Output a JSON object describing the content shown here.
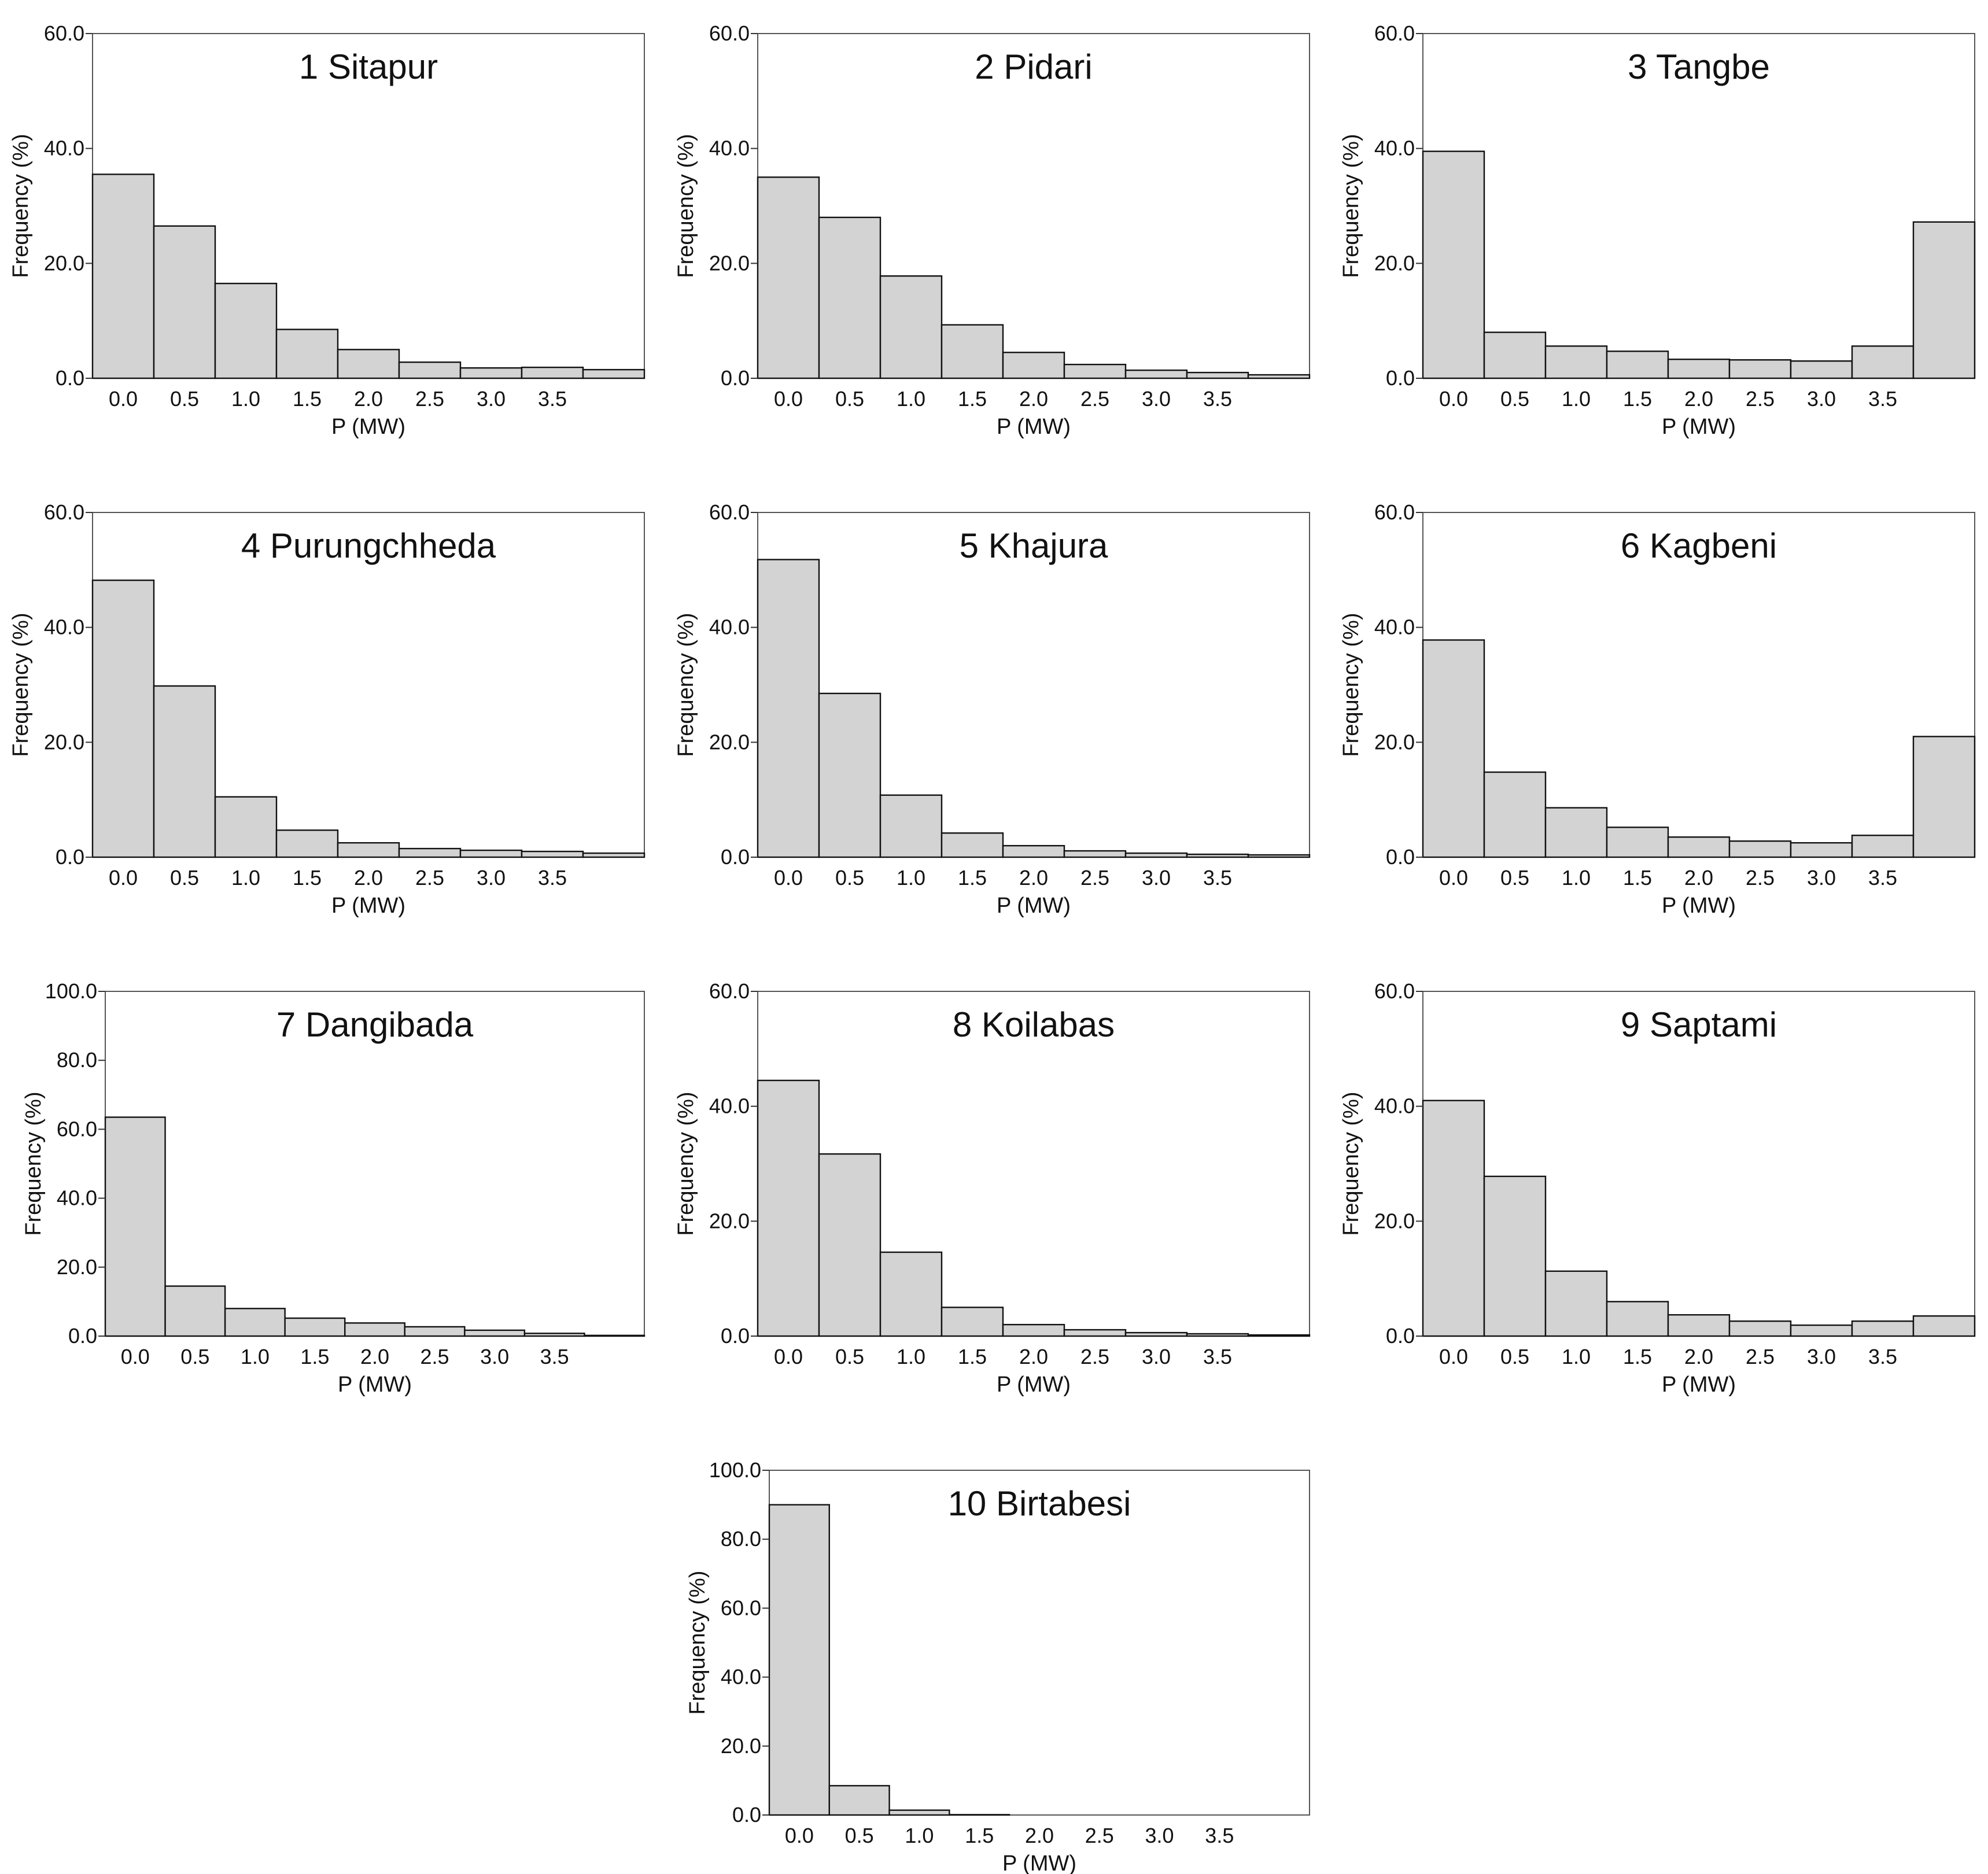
{
  "figure": {
    "bar_color": "#d3d3d3",
    "edge_color": "#111111",
    "frame_color": "#555555"
  },
  "chart_data": [
    {
      "type": "bar",
      "title": "1 Sitapur",
      "xlabel": "P (MW)",
      "ylabel": "Frequency (%)",
      "x_tick_labels": [
        "0.0",
        "0.5",
        "1.0",
        "1.5",
        "2.0",
        "2.5",
        "3.0",
        "3.5"
      ],
      "y_tick_labels": [
        "0.0",
        "20.0",
        "40.0",
        "60.0"
      ],
      "ylim": [
        0,
        60
      ],
      "values": [
        35.5,
        26.5,
        16.5,
        8.5,
        5.0,
        2.8,
        1.8,
        1.9,
        1.5
      ]
    },
    {
      "type": "bar",
      "title": "2 Pidari",
      "xlabel": "P (MW)",
      "ylabel": "Frequency (%)",
      "x_tick_labels": [
        "0.0",
        "0.5",
        "1.0",
        "1.5",
        "2.0",
        "2.5",
        "3.0",
        "3.5"
      ],
      "y_tick_labels": [
        "0.0",
        "20.0",
        "40.0",
        "60.0"
      ],
      "ylim": [
        0,
        60
      ],
      "values": [
        35.0,
        28.0,
        17.8,
        9.3,
        4.5,
        2.4,
        1.4,
        1.0,
        0.6
      ]
    },
    {
      "type": "bar",
      "title": "3 Tangbe",
      "xlabel": "P (MW)",
      "ylabel": "Frequency (%)",
      "x_tick_labels": [
        "0.0",
        "0.5",
        "1.0",
        "1.5",
        "2.0",
        "2.5",
        "3.0",
        "3.5"
      ],
      "y_tick_labels": [
        "0.0",
        "20.0",
        "40.0",
        "60.0"
      ],
      "ylim": [
        0,
        60
      ],
      "values": [
        39.5,
        8.0,
        5.6,
        4.7,
        3.3,
        3.2,
        3.0,
        5.6,
        27.2
      ]
    },
    {
      "type": "bar",
      "title": "4 Purungchheda",
      "xlabel": "P (MW)",
      "ylabel": "Frequency (%)",
      "x_tick_labels": [
        "0.0",
        "0.5",
        "1.0",
        "1.5",
        "2.0",
        "2.5",
        "3.0",
        "3.5"
      ],
      "y_tick_labels": [
        "0.0",
        "20.0",
        "40.0",
        "60.0"
      ],
      "ylim": [
        0,
        60
      ],
      "values": [
        48.2,
        29.8,
        10.5,
        4.7,
        2.5,
        1.5,
        1.2,
        1.0,
        0.7
      ]
    },
    {
      "type": "bar",
      "title": "5 Khajura",
      "xlabel": "P (MW)",
      "ylabel": "Frequency (%)",
      "x_tick_labels": [
        "0.0",
        "0.5",
        "1.0",
        "1.5",
        "2.0",
        "2.5",
        "3.0",
        "3.5"
      ],
      "y_tick_labels": [
        "0.0",
        "20.0",
        "40.0",
        "60.0"
      ],
      "ylim": [
        0,
        60
      ],
      "values": [
        51.8,
        28.5,
        10.8,
        4.2,
        2.0,
        1.1,
        0.7,
        0.5,
        0.4
      ]
    },
    {
      "type": "bar",
      "title": "6 Kagbeni",
      "xlabel": "P (MW)",
      "ylabel": "Frequency (%)",
      "x_tick_labels": [
        "0.0",
        "0.5",
        "1.0",
        "1.5",
        "2.0",
        "2.5",
        "3.0",
        "3.5"
      ],
      "y_tick_labels": [
        "0.0",
        "20.0",
        "40.0",
        "60.0"
      ],
      "ylim": [
        0,
        60
      ],
      "values": [
        37.8,
        14.8,
        8.6,
        5.2,
        3.5,
        2.8,
        2.5,
        3.8,
        21.0
      ]
    },
    {
      "type": "bar",
      "title": "7 Dangibada",
      "xlabel": "P (MW)",
      "ylabel": "Frequency (%)",
      "x_tick_labels": [
        "0.0",
        "0.5",
        "1.0",
        "1.5",
        "2.0",
        "2.5",
        "3.0",
        "3.5"
      ],
      "y_tick_labels": [
        "0.0",
        "20.0",
        "40.0",
        "60.0",
        "80.0",
        "100.0"
      ],
      "ylim": [
        0,
        100
      ],
      "values": [
        63.5,
        14.5,
        8.0,
        5.2,
        3.8,
        2.7,
        1.7,
        0.8,
        0.2
      ]
    },
    {
      "type": "bar",
      "title": "8 Koilabas",
      "xlabel": "P (MW)",
      "ylabel": "Frequency (%)",
      "x_tick_labels": [
        "0.0",
        "0.5",
        "1.0",
        "1.5",
        "2.0",
        "2.5",
        "3.0",
        "3.5"
      ],
      "y_tick_labels": [
        "0.0",
        "20.0",
        "40.0",
        "60.0"
      ],
      "ylim": [
        0,
        60
      ],
      "values": [
        44.5,
        31.7,
        14.6,
        5.0,
        2.0,
        1.1,
        0.6,
        0.4,
        0.2
      ]
    },
    {
      "type": "bar",
      "title": "9 Saptami",
      "xlabel": "P (MW)",
      "ylabel": "Frequency (%)",
      "x_tick_labels": [
        "0.0",
        "0.5",
        "1.0",
        "1.5",
        "2.0",
        "2.5",
        "3.0",
        "3.5"
      ],
      "y_tick_labels": [
        "0.0",
        "20.0",
        "40.0",
        "60.0"
      ],
      "ylim": [
        0,
        60
      ],
      "values": [
        41.0,
        27.8,
        11.3,
        6.0,
        3.7,
        2.6,
        1.9,
        2.6,
        3.5
      ]
    },
    {
      "type": "bar",
      "title": "10 Birtabesi",
      "xlabel": "P (MW)",
      "ylabel": "Frequency (%)",
      "x_tick_labels": [
        "0.0",
        "0.5",
        "1.0",
        "1.5",
        "2.0",
        "2.5",
        "3.0",
        "3.5"
      ],
      "y_tick_labels": [
        "0.0",
        "20.0",
        "40.0",
        "60.0",
        "80.0",
        "100.0"
      ],
      "ylim": [
        0,
        100
      ],
      "values": [
        90.0,
        8.5,
        1.4,
        0.1,
        0.0,
        0.0,
        0.0,
        0.0,
        0.0
      ]
    }
  ]
}
